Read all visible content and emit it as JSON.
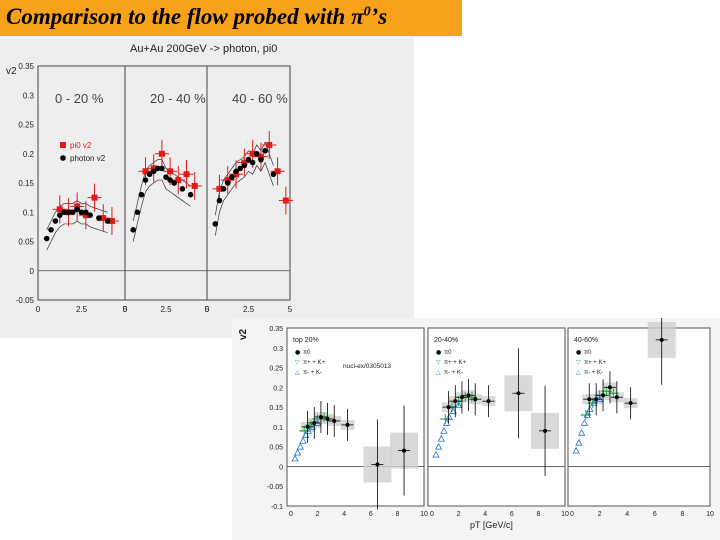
{
  "slide": {
    "title_prefix": "Comparison to the flow probed with ",
    "title_pi": "π",
    "title_sup": "0",
    "title_suffix": "’s"
  },
  "colors": {
    "title_bg": "#f7a21a",
    "pi0_red": "#e31a1c",
    "photon_black": "#000000",
    "kaon_green": "#22b04a",
    "pion_blue": "#2a6fd6"
  },
  "chart_data": [
    {
      "type": "scatter",
      "title": "Au+Au 200GeV  -> photon, pi0",
      "ylabel": "v2",
      "ylim": [
        -0.05,
        0.35
      ],
      "xlim": [
        0,
        5
      ],
      "yticks": [
        "-0.05",
        "0",
        "0.05",
        "0.1",
        "0.15",
        "0.2",
        "0.25",
        "0.3",
        "0.35"
      ],
      "xticks": [
        "0",
        "2.5",
        "5"
      ],
      "legend": {
        "placement": "middle-left",
        "entries": [
          "pi0 v2",
          "photon v2"
        ]
      },
      "panels": [
        {
          "label": "0 - 20 %",
          "series": [
            {
              "name": "pi0 v2",
              "x": [
                1.25,
                1.75,
                2.25,
                2.75,
                3.25,
                3.75,
                4.25
              ],
              "y": [
                0.105,
                0.1,
                0.11,
                0.095,
                0.125,
                0.09,
                0.085
              ]
            },
            {
              "name": "photon v2",
              "x": [
                0.5,
                0.75,
                1.0,
                1.25,
                1.5,
                1.75,
                2.0,
                2.25,
                2.5,
                2.75,
                3.0,
                3.5,
                4.0
              ],
              "y": [
                0.055,
                0.07,
                0.085,
                0.095,
                0.1,
                0.1,
                0.1,
                0.105,
                0.1,
                0.1,
                0.095,
                0.09,
                0.085
              ]
            }
          ]
        },
        {
          "label": "20 - 40 %",
          "series": [
            {
              "name": "pi0 v2",
              "x": [
                1.25,
                1.75,
                2.25,
                2.75,
                3.25,
                3.75,
                4.25
              ],
              "y": [
                0.17,
                0.175,
                0.2,
                0.17,
                0.155,
                0.165,
                0.145
              ]
            },
            {
              "name": "photon v2",
              "x": [
                0.5,
                0.75,
                1.0,
                1.25,
                1.5,
                1.75,
                2.0,
                2.25,
                2.5,
                2.75,
                3.0,
                3.5,
                4.0
              ],
              "y": [
                0.07,
                0.1,
                0.13,
                0.155,
                0.165,
                0.17,
                0.175,
                0.175,
                0.16,
                0.155,
                0.15,
                0.14,
                0.13
              ]
            }
          ]
        },
        {
          "label": "40 - 60 %",
          "series": [
            {
              "name": "pi0 v2",
              "x": [
                0.75,
                1.25,
                1.75,
                2.25,
                2.75,
                3.25,
                3.75,
                4.25,
                4.75
              ],
              "y": [
                0.14,
                0.155,
                0.165,
                0.185,
                0.2,
                0.195,
                0.215,
                0.17,
                0.12
              ]
            },
            {
              "name": "photon v2",
              "x": [
                0.5,
                0.75,
                1.0,
                1.25,
                1.5,
                1.75,
                2.0,
                2.25,
                2.5,
                2.75,
                3.0,
                3.25,
                3.5,
                4.0
              ],
              "y": [
                0.08,
                0.12,
                0.14,
                0.15,
                0.16,
                0.17,
                0.175,
                0.18,
                0.19,
                0.185,
                0.2,
                0.19,
                0.205,
                0.165
              ]
            }
          ]
        }
      ]
    },
    {
      "type": "scatter",
      "ylabel": "v2",
      "xlabel": "pT [GeV/c]",
      "ylim": [
        -0.1,
        0.35
      ],
      "xlim": [
        0,
        10
      ],
      "yticks": [
        "-0.1",
        "-0.05",
        "0",
        "0.05",
        "0.1",
        "0.15",
        "0.2",
        "0.25",
        "0.3",
        "0.35"
      ],
      "xticks": [
        "0",
        "2",
        "4",
        "6",
        "8",
        "10"
      ],
      "annotation": "nucl-ex/0305013",
      "panels": [
        {
          "label": "top 20%",
          "legend": [
            "π0",
            "π+ + K+",
            "π- + K-"
          ],
          "series": [
            {
              "name": "π0",
              "x": [
                1.25,
                1.75,
                2.25,
                2.75,
                3.25,
                4.25,
                6.5,
                8.5
              ],
              "y": [
                0.1,
                0.11,
                0.125,
                0.12,
                0.115,
                0.105,
                0.005,
                0.04
              ]
            },
            {
              "name": "K",
              "x": [
                1.0,
                1.5,
                2.0,
                2.5
              ],
              "y": [
                0.09,
                0.105,
                0.12,
                0.125
              ]
            },
            {
              "name": "π",
              "x": [
                0.3,
                0.5,
                0.7,
                0.9,
                1.1,
                1.3,
                1.6,
                2.0
              ],
              "y": [
                0.02,
                0.035,
                0.05,
                0.065,
                0.08,
                0.09,
                0.1,
                0.11
              ]
            }
          ]
        },
        {
          "label": "20-40%",
          "legend": [
            "π0",
            "π+ + K+",
            "π- + K-"
          ],
          "series": [
            {
              "name": "π0",
              "x": [
                1.25,
                1.75,
                2.25,
                2.75,
                3.25,
                4.25,
                6.5,
                8.5
              ],
              "y": [
                0.15,
                0.165,
                0.175,
                0.18,
                0.17,
                0.165,
                0.185,
                0.09
              ]
            },
            {
              "name": "K",
              "x": [
                1.0,
                1.5,
                2.0,
                2.5,
                3.0
              ],
              "y": [
                0.12,
                0.15,
                0.165,
                0.175,
                0.175
              ]
            },
            {
              "name": "π",
              "x": [
                0.3,
                0.5,
                0.7,
                0.9,
                1.1,
                1.3,
                1.6,
                2.0
              ],
              "y": [
                0.03,
                0.05,
                0.07,
                0.09,
                0.11,
                0.125,
                0.14,
                0.155
              ]
            }
          ]
        },
        {
          "label": "40-60%",
          "legend": [
            "π0",
            "π+ + K+",
            "π- + K-"
          ],
          "series": [
            {
              "name": "π0",
              "x": [
                1.25,
                1.75,
                2.25,
                2.75,
                3.25,
                4.25,
                6.5
              ],
              "y": [
                0.17,
                0.17,
                0.18,
                0.2,
                0.175,
                0.16,
                0.32
              ]
            },
            {
              "name": "K",
              "x": [
                1.0,
                1.5,
                2.0,
                2.5,
                3.0
              ],
              "y": [
                0.13,
                0.16,
                0.18,
                0.19,
                0.185
              ]
            },
            {
              "name": "π",
              "x": [
                0.3,
                0.5,
                0.7,
                0.9,
                1.1,
                1.3,
                1.6,
                2.0
              ],
              "y": [
                0.04,
                0.06,
                0.085,
                0.11,
                0.13,
                0.145,
                0.16,
                0.17
              ]
            }
          ]
        }
      ]
    }
  ]
}
